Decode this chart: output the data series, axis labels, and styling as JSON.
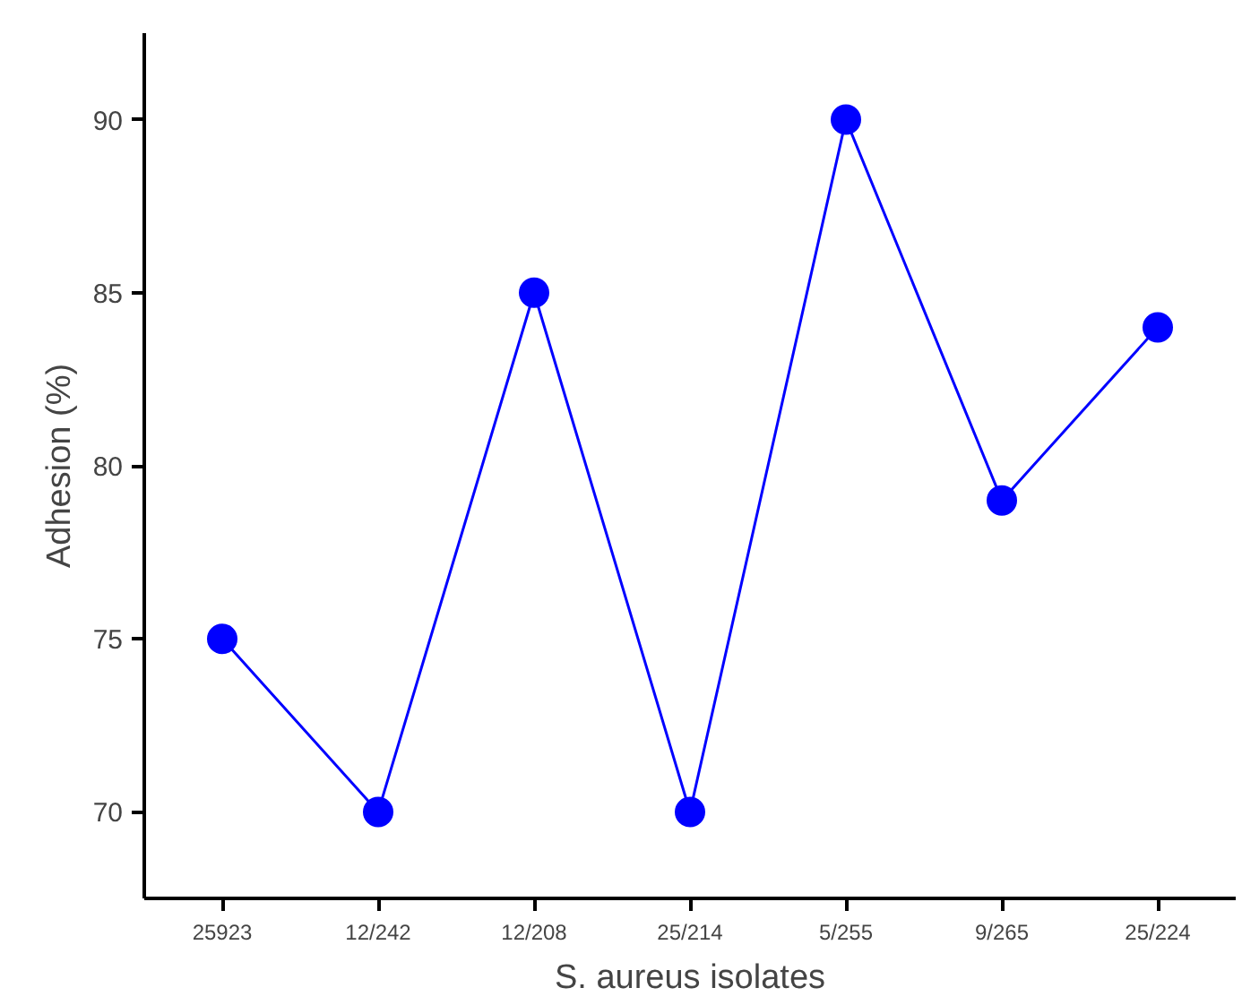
{
  "chart_data": {
    "type": "line",
    "xlabel": "S. aureus isolates",
    "ylabel": "Adhesion (%)",
    "categories": [
      "25923",
      "12/242",
      "12/208",
      "25/214",
      "5/255",
      "9/265",
      "25/224"
    ],
    "series": [
      {
        "color": "#0000ff",
        "values": [
          75,
          70,
          85,
          70,
          90,
          79,
          84
        ]
      }
    ],
    "ylim": [
      67.5,
      92.5
    ],
    "yticks": [
      70,
      75,
      80,
      85,
      90
    ],
    "grid": false,
    "marker": "circle",
    "line_style": "solid"
  }
}
